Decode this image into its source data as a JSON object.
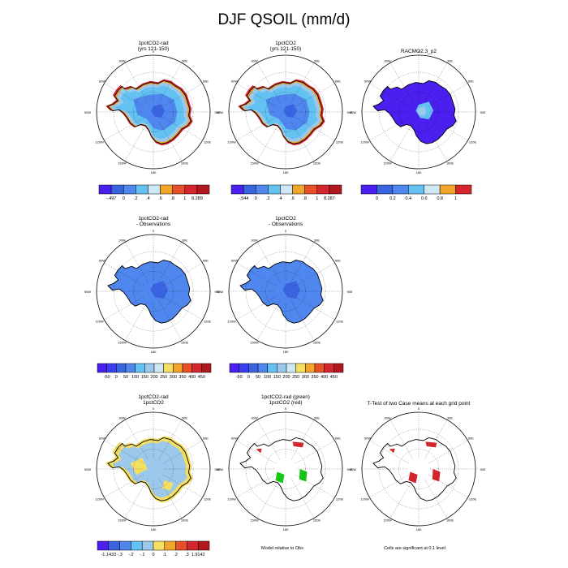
{
  "title": "DJF QSOIL (mm/d)",
  "colors": {
    "ice_blue": "#3a63e0",
    "light_blue": "#9cc8ec",
    "mid_blue": "#4f87ee",
    "cyan": "#63c2f2",
    "orange": "#f2a52a",
    "red": "#d4262c",
    "dark_red": "#b0171f",
    "violet": "#4a1ff0",
    "yellow": "#f4df62",
    "green": "#18c818"
  },
  "panels": [
    {
      "id": "p1",
      "title_lines": [
        "1pctCO2-rad",
        "(yrs 121-150)"
      ],
      "style": "model"
    },
    {
      "id": "p2",
      "title_lines": [
        "1pctCO2",
        "(yrs 121-150)"
      ],
      "style": "model"
    },
    {
      "id": "p3",
      "title_lines": [
        "RACMO2.3_p2"
      ],
      "style": "obs"
    },
    {
      "id": "p4",
      "title_lines": [
        "1pctCO2-rad",
        "- Observations"
      ],
      "style": "diff"
    },
    {
      "id": "p5",
      "title_lines": [
        "1pctCO2",
        "- Observations"
      ],
      "style": "diff"
    },
    {
      "id": "p6",
      "title_lines": [
        "1pctCO2-rad",
        "1pctCO2"
      ],
      "style": "cmp"
    },
    {
      "id": "p7",
      "title_lines": [
        "1pctCO2-rad (green)",
        "1pctCO2 (red)"
      ],
      "style": "outline_gr"
    },
    {
      "id": "p8",
      "title_lines": [
        "T-Test of two Case means at each grid point"
      ],
      "style": "outline_r"
    }
  ],
  "map_labels": {
    "top": "0",
    "bottom": "180",
    "left": "90W",
    "right": "90E",
    "ul1": "30W",
    "ul2": "60W",
    "ur1": "30E",
    "ur2": "60E",
    "ll1": "120W",
    "ll2": "150W",
    "lr1": "120E",
    "lr2": "150E"
  },
  "colorbars": [
    {
      "id": "cb1",
      "labels": [
        "-.497",
        "0",
        ".2",
        ".4",
        ".6",
        ".8",
        "1",
        "8.289"
      ],
      "colors": [
        "#4a1ff0",
        "#3a63e0",
        "#4f87ee",
        "#63c2f2",
        "#cfe8f6",
        "#f2a52a",
        "#e8502a",
        "#d4262c",
        "#b0171f"
      ]
    },
    {
      "id": "cb2",
      "labels": [
        "-.544",
        "0",
        ".2",
        ".4",
        ".6",
        ".8",
        "1",
        "8.287"
      ],
      "colors": [
        "#4a1ff0",
        "#3a63e0",
        "#4f87ee",
        "#63c2f2",
        "#cfe8f6",
        "#f2a52a",
        "#e8502a",
        "#d4262c",
        "#b0171f"
      ]
    },
    {
      "id": "cb3",
      "labels": [
        "0",
        "0.2",
        "0.4",
        "0.6",
        "0.8",
        "1"
      ],
      "colors": [
        "#4a1ff0",
        "#3a63e0",
        "#4f87ee",
        "#63c2f2",
        "#cfe8f6",
        "#f2a52a",
        "#d4262c"
      ]
    },
    {
      "id": "cb4",
      "labels": [
        "-50",
        "0",
        "50",
        "100",
        "150",
        "200",
        "250",
        "300",
        "350",
        "400",
        "450"
      ],
      "colors": [
        "#4a1ff0",
        "#3a3ef0",
        "#3a63e0",
        "#4f87ee",
        "#63c2f2",
        "#9cc8ec",
        "#cfe8f6",
        "#f4df62",
        "#f2a52a",
        "#e8502a",
        "#d4262c",
        "#b0171f"
      ]
    },
    {
      "id": "cb5",
      "labels": [
        "-50",
        "0",
        "50",
        "100",
        "150",
        "200",
        "250",
        "300",
        "350",
        "400",
        "450"
      ],
      "colors": [
        "#4a1ff0",
        "#3a3ef0",
        "#3a63e0",
        "#4f87ee",
        "#63c2f2",
        "#9cc8ec",
        "#cfe8f6",
        "#f4df62",
        "#f2a52a",
        "#e8502a",
        "#d4262c",
        "#b0171f"
      ]
    },
    {
      "id": "cb6",
      "labels": [
        "-1.1433",
        "-.3",
        "-.2",
        "-.1",
        "0",
        ".1",
        ".2",
        ".3",
        "1.9142"
      ],
      "colors": [
        "#4a1ff0",
        "#3a63e0",
        "#4f87ee",
        "#63c2f2",
        "#9cc8ec",
        "#f4df62",
        "#f2a52a",
        "#e8502a",
        "#d4262c",
        "#b0171f"
      ]
    }
  ],
  "captions": {
    "p7": "Model relative to Obs",
    "p8": "Cells are significant at 0.1 level"
  }
}
